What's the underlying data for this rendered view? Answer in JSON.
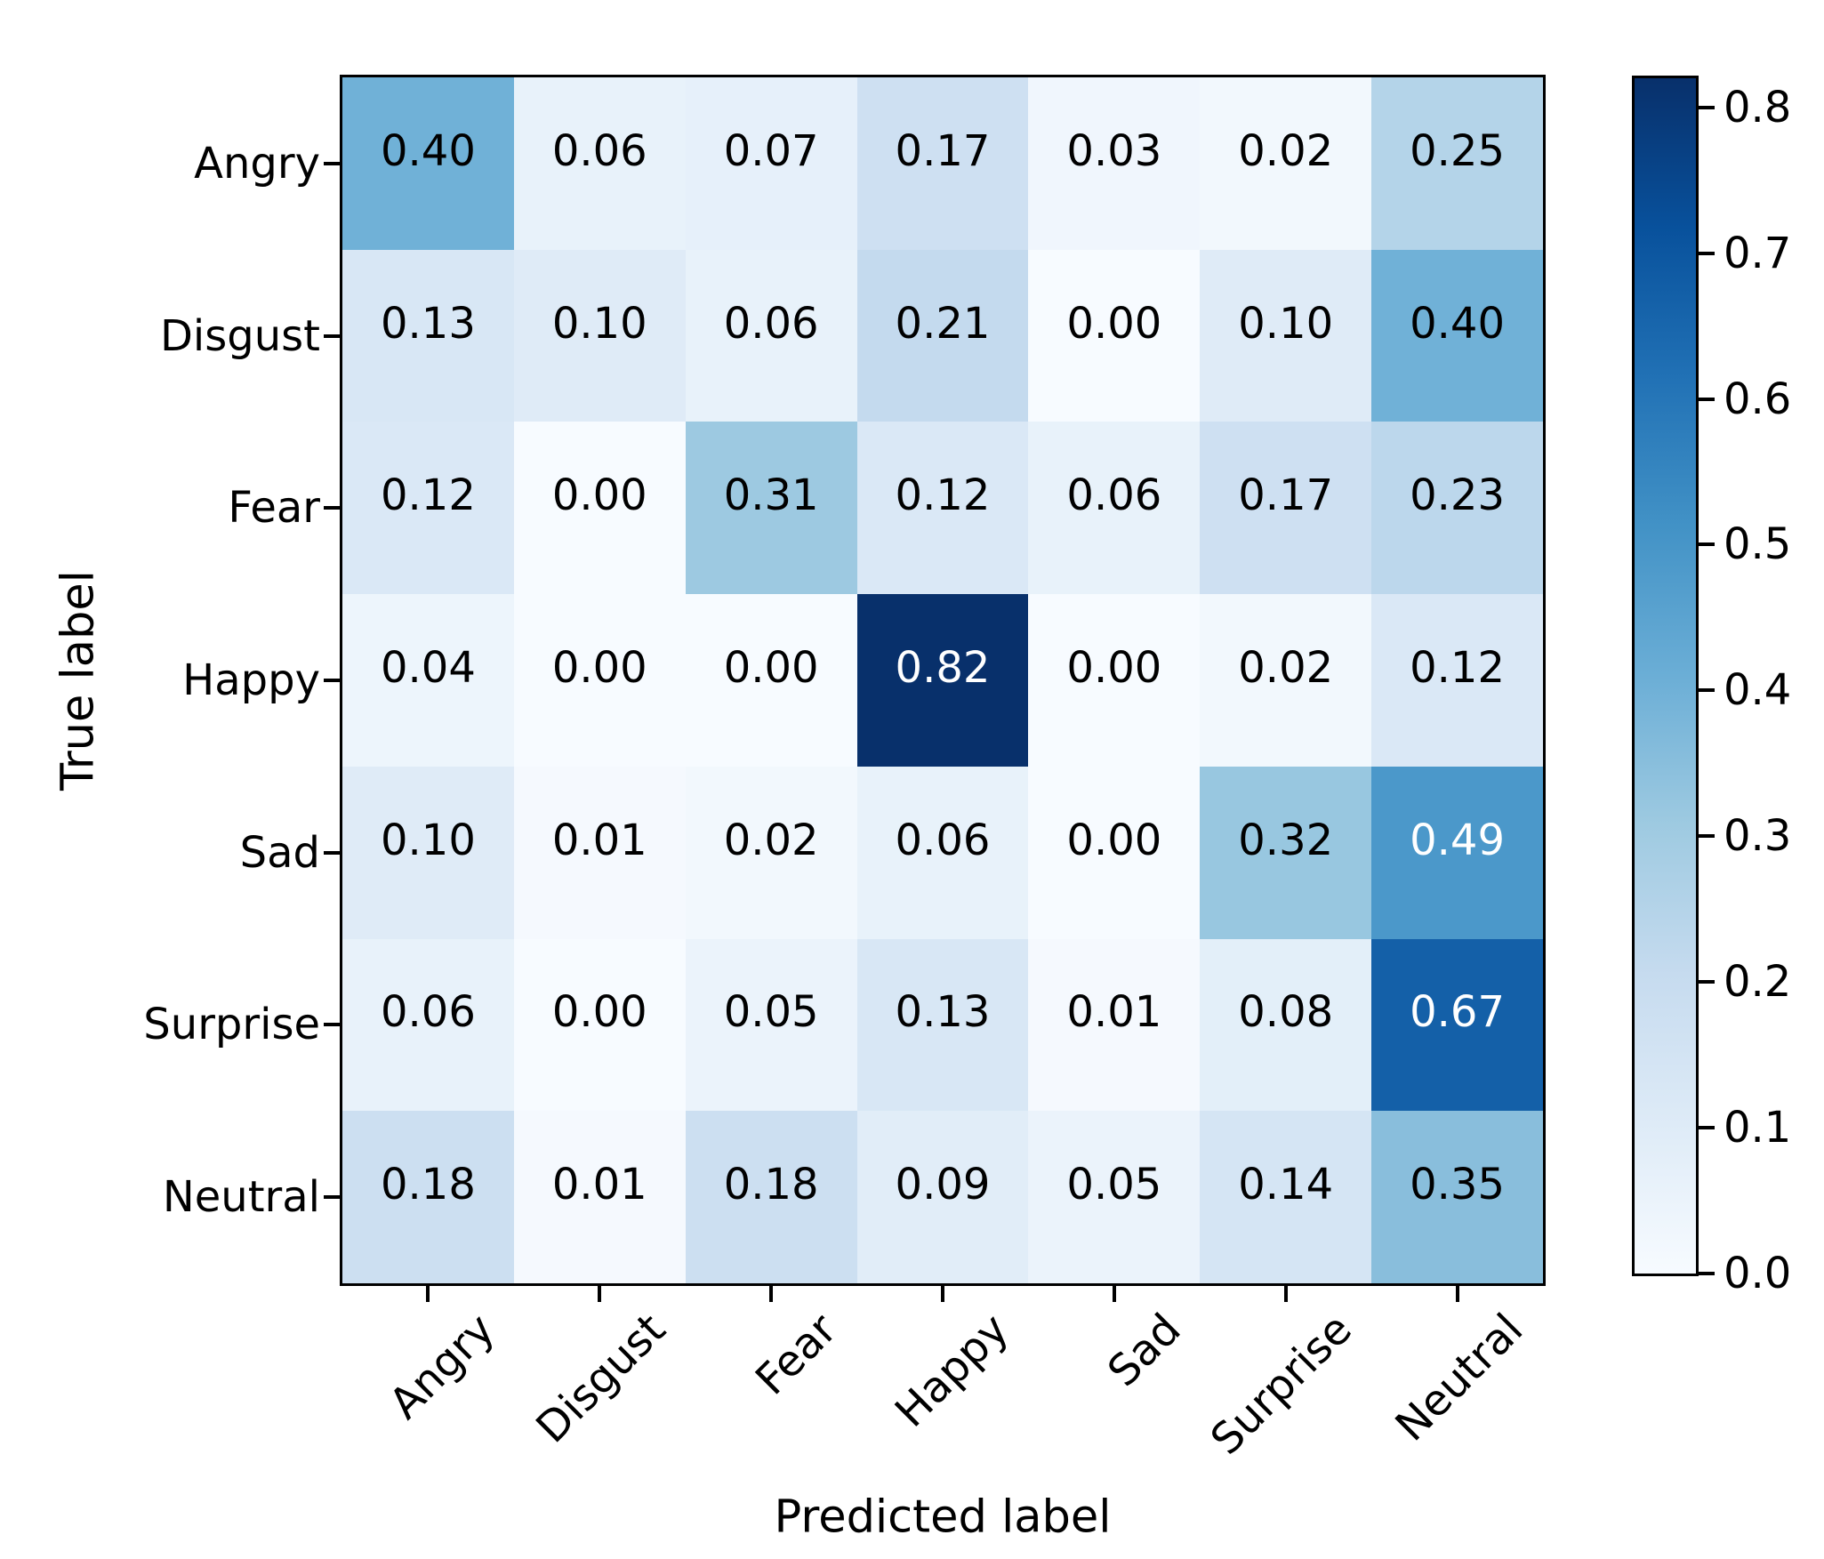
{
  "figure": {
    "background": "#ffffff",
    "spine_color": "#000000"
  },
  "chart_data": {
    "type": "heatmap",
    "title": "",
    "xlabel": "Predicted label",
    "ylabel": "True label",
    "x_tick_labels": [
      "Angry",
      "Disgust",
      "Fear",
      "Happy",
      "Sad",
      "Surprise",
      "Neutral"
    ],
    "y_tick_labels": [
      "Angry",
      "Disgust",
      "Fear",
      "Happy",
      "Sad",
      "Surprise",
      "Neutral"
    ],
    "matrix": [
      [
        0.4,
        0.06,
        0.07,
        0.17,
        0.03,
        0.02,
        0.25
      ],
      [
        0.13,
        0.1,
        0.06,
        0.21,
        0.0,
        0.1,
        0.4
      ],
      [
        0.12,
        0.0,
        0.31,
        0.12,
        0.06,
        0.17,
        0.23
      ],
      [
        0.04,
        0.0,
        0.0,
        0.82,
        0.0,
        0.02,
        0.12
      ],
      [
        0.1,
        0.01,
        0.02,
        0.06,
        0.0,
        0.32,
        0.49
      ],
      [
        0.06,
        0.0,
        0.05,
        0.13,
        0.01,
        0.08,
        0.67
      ],
      [
        0.18,
        0.01,
        0.18,
        0.09,
        0.05,
        0.14,
        0.35
      ]
    ],
    "value_decimals": 2,
    "vmin": 0.0,
    "vmax": 0.82,
    "colormap": {
      "name": "Blues",
      "stops": [
        "#f7fbff",
        "#deebf7",
        "#c6dbef",
        "#9ecae1",
        "#6baed6",
        "#4292c6",
        "#2171b5",
        "#08519c",
        "#08306b"
      ]
    },
    "text_colors": {
      "on_light": "#000000",
      "on_dark": "#ffffff"
    },
    "colorbar": {
      "ticks": [
        0.0,
        0.1,
        0.2,
        0.3,
        0.4,
        0.5,
        0.6,
        0.7,
        0.8
      ],
      "position": "right"
    },
    "grid": false,
    "legend": false,
    "x_tick_rotation_deg": 45
  }
}
